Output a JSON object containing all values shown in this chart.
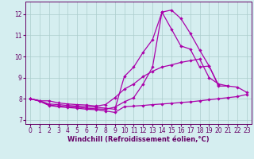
{
  "xlabel": "Windchill (Refroidissement éolien,°C)",
  "background_color": "#d5eef0",
  "grid_color": "#aacccc",
  "line_color": "#aa00aa",
  "axis_color": "#660066",
  "xlim": [
    -0.5,
    23.5
  ],
  "ylim": [
    6.8,
    12.6
  ],
  "xticks": [
    0,
    1,
    2,
    3,
    4,
    5,
    6,
    7,
    8,
    9,
    10,
    11,
    12,
    13,
    14,
    15,
    16,
    17,
    18,
    19,
    20,
    21,
    22,
    23
  ],
  "yticks": [
    7,
    8,
    9,
    10,
    11,
    12
  ],
  "series": [
    {
      "x": [
        0,
        1,
        2,
        3,
        4,
        5,
        6,
        7,
        8,
        9,
        10,
        11,
        12,
        13,
        14,
        15,
        16,
        17,
        18,
        19,
        20,
        21,
        22,
        23
      ],
      "y": [
        8.0,
        7.9,
        7.9,
        7.8,
        7.75,
        7.72,
        7.7,
        7.65,
        7.72,
        8.05,
        8.45,
        8.7,
        9.05,
        9.3,
        9.5,
        9.6,
        9.72,
        9.8,
        9.88,
        9.0,
        8.7,
        8.6,
        8.55,
        8.3
      ]
    },
    {
      "x": [
        0,
        1,
        2,
        3,
        4,
        5,
        6,
        7,
        8,
        9,
        10,
        11,
        12,
        13,
        14,
        15,
        16,
        17,
        18,
        19,
        20,
        21
      ],
      "y": [
        8.0,
        7.9,
        7.7,
        7.65,
        7.62,
        7.6,
        7.55,
        7.52,
        7.5,
        7.6,
        7.85,
        8.05,
        8.7,
        9.5,
        12.1,
        12.2,
        11.8,
        11.1,
        10.3,
        9.55,
        8.6,
        8.6
      ]
    },
    {
      "x": [
        0,
        1,
        2,
        3,
        4,
        5,
        6,
        7,
        8,
        9,
        10,
        11,
        12,
        13,
        14,
        15,
        16,
        17,
        18,
        19,
        20,
        21,
        22,
        23
      ],
      "y": [
        8.0,
        7.88,
        7.68,
        7.62,
        7.58,
        7.55,
        7.5,
        7.48,
        7.42,
        7.35,
        7.62,
        7.65,
        7.68,
        7.72,
        7.75,
        7.78,
        7.82,
        7.85,
        7.9,
        7.95,
        8.0,
        8.05,
        8.1,
        8.2
      ]
    },
    {
      "x": [
        0,
        1,
        2,
        3,
        4,
        5,
        6,
        7,
        8,
        9,
        10,
        11,
        12,
        13,
        14,
        15,
        16,
        17,
        18,
        19,
        20
      ],
      "y": [
        8.0,
        7.9,
        7.75,
        7.72,
        7.68,
        7.65,
        7.62,
        7.6,
        7.55,
        7.5,
        9.05,
        9.5,
        10.2,
        10.8,
        12.1,
        11.3,
        10.5,
        10.35,
        9.5,
        9.55,
        8.65
      ]
    }
  ],
  "xlabel_fontsize": 6.0,
  "tick_fontsize": 5.5
}
